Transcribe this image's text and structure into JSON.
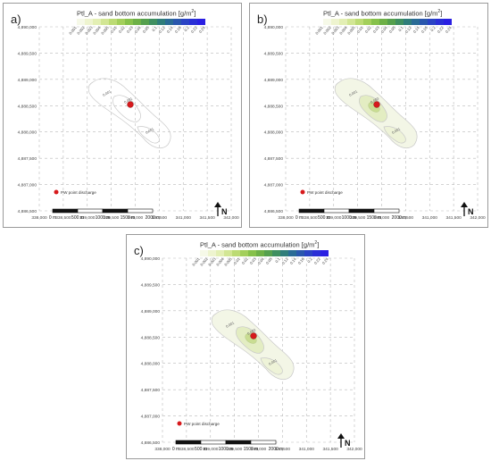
{
  "colors": {
    "colorbar": [
      "#f6f9e8",
      "#eef4cf",
      "#e3efb4",
      "#d2e694",
      "#bcdb74",
      "#a3cf5b",
      "#86c14a",
      "#6db046",
      "#55a04d",
      "#3f8f60",
      "#2f7d7a",
      "#2a6b95",
      "#2a57ad",
      "#2a43c4",
      "#2a2fd6",
      "#2a1fe2"
    ],
    "contour": "#c8c8c8",
    "discharge_point": "#d7191c"
  },
  "panels": [
    {
      "label": "a)",
      "title": "Ptl_A - sand bottom accumulation [g/m",
      "title_sup": "2",
      "title_close": "]",
      "legend_ticks": [
        "0.001",
        "0.002",
        "0.003",
        "0.004",
        "0.005",
        "0.01",
        "0.02",
        "0.03",
        "0.04",
        "0.05",
        "0.1",
        "0.12",
        "0.14",
        "0.16",
        "0.2",
        "0.22",
        "0.24"
      ],
      "y_ticks": [
        "4,890,000",
        "4,889,500",
        "4,889,000",
        "4,888,500",
        "4,888,000",
        "4,887,500",
        "4,887,000",
        "4,886,500"
      ],
      "x_ticks": [
        "338,000",
        "338,500",
        "339,000",
        "339,500",
        "340,000",
        "340,500",
        "341,000",
        "341,500",
        "342,000"
      ],
      "contour_labels": [
        "0.001",
        "0.001",
        "0.001"
      ],
      "point_legend": "PW point discharge",
      "scale_labels": [
        "0 m",
        "500 m",
        "1000 m",
        "1500 m",
        "2000 m"
      ],
      "north": "N"
    },
    {
      "label": "b)",
      "title": "Ptl_A - sand bottom accumulation [g/m",
      "title_sup": "2",
      "title_close": "]",
      "legend_ticks": [
        "0.001",
        "0.002",
        "0.003",
        "0.004",
        "0.005",
        "0.01",
        "0.02",
        "0.03",
        "0.04",
        "0.05",
        "0.1",
        "0.12",
        "0.14",
        "0.16",
        "0.2",
        "0.22",
        "0.24"
      ],
      "y_ticks": [
        "4,890,000",
        "4,889,500",
        "4,889,000",
        "4,888,500",
        "4,888,000",
        "4,887,500",
        "4,887,000",
        "4,886,500"
      ],
      "x_ticks": [
        "338,000",
        "338,500",
        "339,000",
        "339,500",
        "340,000",
        "340,500",
        "341,000",
        "341,500",
        "342,000"
      ],
      "contour_labels": [
        "0.001",
        "0.003",
        "0.001"
      ],
      "point_legend": "PW point discharge",
      "scale_labels": [
        "0 m",
        "500 m",
        "1000 m",
        "1500 m",
        "2000 m"
      ],
      "north": "N"
    },
    {
      "label": "c)",
      "title": "Ptl_A - sand bottom accumulation [g/m",
      "title_sup": "2",
      "title_close": "]",
      "legend_ticks": [
        "0.001",
        "0.002",
        "0.003",
        "0.004",
        "0.005",
        "0.01",
        "0.02",
        "0.03",
        "0.04",
        "0.05",
        "0.1",
        "0.12",
        "0.14",
        "0.16",
        "0.2",
        "0.22",
        "0.24"
      ],
      "y_ticks": [
        "4,890,000",
        "4,889,500",
        "4,889,000",
        "4,888,500",
        "4,888,000",
        "4,887,500",
        "4,887,000",
        "4,886,500"
      ],
      "x_ticks": [
        "338,000",
        "338,500",
        "339,000",
        "339,500",
        "340,000",
        "340,500",
        "341,000",
        "341,500",
        "342,000"
      ],
      "contour_labels": [
        "0.001",
        "0.003",
        "0.001"
      ],
      "point_legend": "PW point discharge",
      "scale_labels": [
        "0 m",
        "500 m",
        "1000 m",
        "1500 m",
        "2000 m"
      ],
      "north": "N"
    }
  ]
}
